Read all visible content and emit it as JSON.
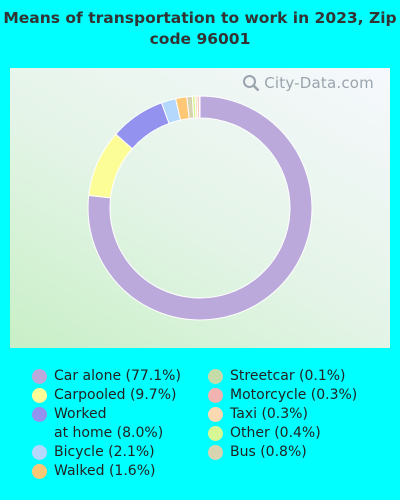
{
  "title": "Means of transportation to work in 2023, Zip code 96001",
  "watermark": "City-Data.com",
  "chart_data": {
    "type": "pie",
    "title": "Means of transportation to work in 2023, Zip code 96001",
    "legend_placement": "bottom",
    "slices": [
      {
        "label": "Car alone (77.1%)",
        "name": "Car alone",
        "value": 77.1,
        "color": "#bba9db"
      },
      {
        "label": "Carpooled (9.7%)",
        "name": "Carpooled",
        "value": 9.7,
        "color": "#fdfd98"
      },
      {
        "label": "Worked at home (8.0%)",
        "name": "Worked at home",
        "value": 8.0,
        "color": "#9392ee"
      },
      {
        "label": "Bicycle (2.1%)",
        "name": "Bicycle",
        "value": 2.1,
        "color": "#b4d8fb"
      },
      {
        "label": "Walked (1.6%)",
        "name": "Walked",
        "value": 1.6,
        "color": "#fdc776"
      },
      {
        "label": "Bus (0.8%)",
        "name": "Bus",
        "value": 0.8,
        "color": "#d8d4b2"
      },
      {
        "label": "Other (0.4%)",
        "name": "Other",
        "value": 0.4,
        "color": "#d7f694"
      },
      {
        "label": "Taxi (0.3%)",
        "name": "Taxi",
        "value": 0.3,
        "color": "#fcd9b0"
      },
      {
        "label": "Motorcycle (0.3%)",
        "name": "Motorcycle",
        "value": 0.3,
        "color": "#f1b3b0"
      },
      {
        "label": "Streetcar (0.1%)",
        "name": "Streetcar",
        "value": 0.1,
        "color": "#c6dca8"
      }
    ],
    "legend": [
      [
        "Car alone (77.1%)",
        "Carpooled (9.7%)",
        "Worked\nat home (8.0%)",
        "Bicycle (2.1%)",
        "Walked (1.6%)"
      ],
      [
        "Streetcar (0.1%)",
        "Motorcycle (0.3%)",
        "Taxi (0.3%)",
        "Other (0.4%)",
        "Bus (0.8%)"
      ]
    ]
  }
}
